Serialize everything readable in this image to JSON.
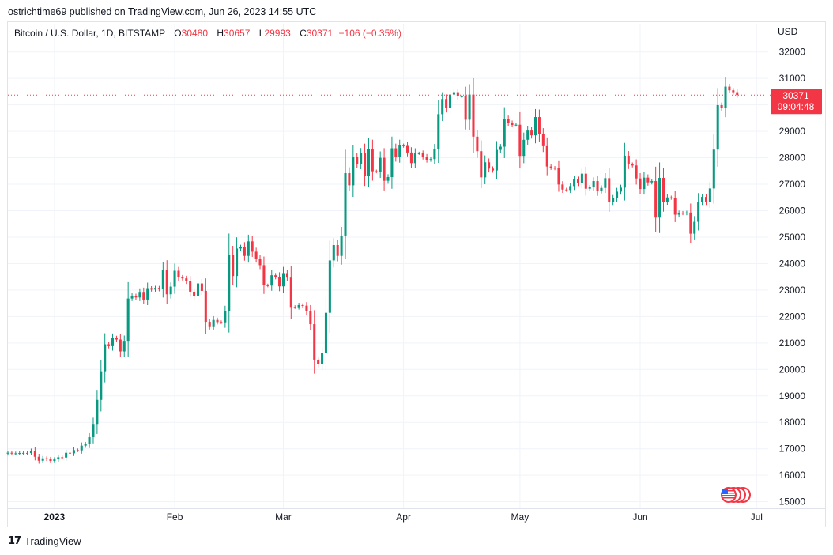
{
  "header": {
    "published": "ostrichtime69 published on TradingView.com, Jun 26, 2023 14:55 UTC"
  },
  "legend": {
    "symbol": "Bitcoin / U.S. Dollar, 1D, BITSTAMP",
    "o_label": "O",
    "o_value": "30480",
    "h_label": "H",
    "h_value": "30657",
    "l_label": "L",
    "l_value": "29993",
    "c_label": "C",
    "c_value": "30371",
    "change": "−106 (−0.35%)"
  },
  "price_axis": {
    "currency": "USD"
  },
  "last_price": {
    "price": "30371",
    "countdown": "09:04:48",
    "color": "#f23645"
  },
  "footer": {
    "brand": "TradingView",
    "brand_mark": "17"
  },
  "colors": {
    "up": "#089981",
    "down": "#f23645",
    "grid": "#f0f3fa"
  },
  "icons": {
    "events": "us-flag-events-icon"
  },
  "chart_data": {
    "type": "candlestick",
    "title": "Bitcoin / U.S. Dollar, 1D, BITSTAMP",
    "ylabel": "USD",
    "ylim": [
      14750,
      32350
    ],
    "y_ticks": [
      15000,
      16000,
      17000,
      18000,
      19000,
      20000,
      21000,
      22000,
      23000,
      24000,
      25000,
      26000,
      27000,
      28000,
      29000,
      30000,
      31000,
      32000
    ],
    "x_ticks": [
      {
        "label": "2023",
        "date": "2023-01-01",
        "bold": true
      },
      {
        "label": "Feb",
        "date": "2023-02-01",
        "bold": false
      },
      {
        "label": "Mar",
        "date": "2023-03-01",
        "bold": false
      },
      {
        "label": "Apr",
        "date": "2023-04-01",
        "bold": false
      },
      {
        "label": "May",
        "date": "2023-05-01",
        "bold": false
      },
      {
        "label": "Jun",
        "date": "2023-06-01",
        "bold": false
      },
      {
        "label": "Jul",
        "date": "2023-07-01",
        "bold": false
      }
    ],
    "xlim": [
      "2022-12-20",
      "2023-07-04"
    ],
    "grid": true,
    "last_close": 30371,
    "closes": [
      [
        "2022-12-20",
        16850
      ],
      [
        "2022-12-21",
        16820
      ],
      [
        "2022-12-22",
        16830
      ],
      [
        "2022-12-23",
        16840
      ],
      [
        "2022-12-24",
        16845
      ],
      [
        "2022-12-25",
        16840
      ],
      [
        "2022-12-26",
        16920
      ],
      [
        "2022-12-27",
        16700
      ],
      [
        "2022-12-28",
        16550
      ],
      [
        "2022-12-29",
        16640
      ],
      [
        "2022-12-30",
        16610
      ],
      [
        "2022-12-31",
        16540
      ],
      [
        "2023-01-01",
        16600
      ],
      [
        "2023-01-02",
        16680
      ],
      [
        "2023-01-03",
        16670
      ],
      [
        "2023-01-04",
        16850
      ],
      [
        "2023-01-05",
        16830
      ],
      [
        "2023-01-06",
        16950
      ],
      [
        "2023-01-07",
        16940
      ],
      [
        "2023-01-08",
        17120
      ],
      [
        "2023-01-09",
        17180
      ],
      [
        "2023-01-10",
        17440
      ],
      [
        "2023-01-11",
        17940
      ],
      [
        "2023-01-12",
        18850
      ],
      [
        "2023-01-13",
        19930
      ],
      [
        "2023-01-14",
        20950
      ],
      [
        "2023-01-15",
        20880
      ],
      [
        "2023-01-16",
        21190
      ],
      [
        "2023-01-17",
        21130
      ],
      [
        "2023-01-18",
        20680
      ],
      [
        "2023-01-19",
        21080
      ],
      [
        "2023-01-20",
        22680
      ],
      [
        "2023-01-21",
        22780
      ],
      [
        "2023-01-22",
        22720
      ],
      [
        "2023-01-23",
        22930
      ],
      [
        "2023-01-24",
        22640
      ],
      [
        "2023-01-25",
        23070
      ],
      [
        "2023-01-26",
        23020
      ],
      [
        "2023-01-27",
        23080
      ],
      [
        "2023-01-28",
        23030
      ],
      [
        "2023-01-29",
        23750
      ],
      [
        "2023-01-30",
        22840
      ],
      [
        "2023-01-31",
        23130
      ],
      [
        "2023-02-01",
        23730
      ],
      [
        "2023-02-02",
        23490
      ],
      [
        "2023-02-03",
        23440
      ],
      [
        "2023-02-04",
        23330
      ],
      [
        "2023-02-05",
        22940
      ],
      [
        "2023-02-06",
        22760
      ],
      [
        "2023-02-07",
        23250
      ],
      [
        "2023-02-08",
        22970
      ],
      [
        "2023-02-09",
        21800
      ],
      [
        "2023-02-10",
        21630
      ],
      [
        "2023-02-11",
        21870
      ],
      [
        "2023-02-12",
        21790
      ],
      [
        "2023-02-13",
        21780
      ],
      [
        "2023-02-14",
        22200
      ],
      [
        "2023-02-15",
        24330
      ],
      [
        "2023-02-16",
        23530
      ],
      [
        "2023-02-17",
        24570
      ],
      [
        "2023-02-18",
        24630
      ],
      [
        "2023-02-19",
        24290
      ],
      [
        "2023-02-20",
        24840
      ],
      [
        "2023-02-21",
        24450
      ],
      [
        "2023-02-22",
        24190
      ],
      [
        "2023-02-23",
        23940
      ],
      [
        "2023-02-24",
        23180
      ],
      [
        "2023-02-25",
        23170
      ],
      [
        "2023-02-26",
        23560
      ],
      [
        "2023-02-27",
        23490
      ],
      [
        "2023-02-28",
        23140
      ],
      [
        "2023-03-01",
        23640
      ],
      [
        "2023-03-02",
        23470
      ],
      [
        "2023-03-03",
        22360
      ],
      [
        "2023-03-04",
        22350
      ],
      [
        "2023-03-05",
        22430
      ],
      [
        "2023-03-06",
        22410
      ],
      [
        "2023-03-07",
        22200
      ],
      [
        "2023-03-08",
        21710
      ],
      [
        "2023-03-09",
        20370
      ],
      [
        "2023-03-10",
        20200
      ],
      [
        "2023-03-11",
        20620
      ],
      [
        "2023-03-12",
        22140
      ],
      [
        "2023-03-13",
        24120
      ],
      [
        "2023-03-14",
        24700
      ],
      [
        "2023-03-15",
        24290
      ],
      [
        "2023-03-16",
        25060
      ],
      [
        "2023-03-17",
        27420
      ],
      [
        "2023-03-18",
        26960
      ],
      [
        "2023-03-19",
        28040
      ],
      [
        "2023-03-20",
        27770
      ],
      [
        "2023-03-21",
        28170
      ],
      [
        "2023-03-22",
        27300
      ],
      [
        "2023-03-23",
        28330
      ],
      [
        "2023-03-24",
        27490
      ],
      [
        "2023-03-25",
        27480
      ],
      [
        "2023-03-26",
        28000
      ],
      [
        "2023-03-27",
        27130
      ],
      [
        "2023-03-28",
        27270
      ],
      [
        "2023-03-29",
        28360
      ],
      [
        "2023-03-30",
        28030
      ],
      [
        "2023-03-31",
        28470
      ],
      [
        "2023-04-01",
        28450
      ],
      [
        "2023-04-02",
        28200
      ],
      [
        "2023-04-03",
        27800
      ],
      [
        "2023-04-04",
        28170
      ],
      [
        "2023-04-05",
        28170
      ],
      [
        "2023-04-06",
        28040
      ],
      [
        "2023-04-07",
        27920
      ],
      [
        "2023-04-08",
        27950
      ],
      [
        "2023-04-09",
        28330
      ],
      [
        "2023-04-10",
        29650
      ],
      [
        "2023-04-11",
        30220
      ],
      [
        "2023-04-12",
        29890
      ],
      [
        "2023-04-13",
        30390
      ],
      [
        "2023-04-14",
        30480
      ],
      [
        "2023-04-15",
        30320
      ],
      [
        "2023-04-16",
        30320
      ],
      [
        "2023-04-17",
        29440
      ],
      [
        "2023-04-18",
        30390
      ],
      [
        "2023-04-19",
        28800
      ],
      [
        "2023-04-20",
        28250
      ],
      [
        "2023-04-21",
        27260
      ],
      [
        "2023-04-22",
        27830
      ],
      [
        "2023-04-23",
        27590
      ],
      [
        "2023-04-24",
        27520
      ],
      [
        "2023-04-25",
        28300
      ],
      [
        "2023-04-26",
        28420
      ],
      [
        "2023-04-27",
        29480
      ],
      [
        "2023-04-28",
        29320
      ],
      [
        "2023-04-29",
        29240
      ],
      [
        "2023-04-30",
        29250
      ],
      [
        "2023-05-01",
        28070
      ],
      [
        "2023-05-02",
        28680
      ],
      [
        "2023-05-03",
        29030
      ],
      [
        "2023-05-04",
        28850
      ],
      [
        "2023-05-05",
        29540
      ],
      [
        "2023-05-06",
        28900
      ],
      [
        "2023-05-07",
        28440
      ],
      [
        "2023-05-08",
        27670
      ],
      [
        "2023-05-09",
        27620
      ],
      [
        "2023-05-10",
        27600
      ],
      [
        "2023-05-11",
        26990
      ],
      [
        "2023-05-12",
        26800
      ],
      [
        "2023-05-13",
        26780
      ],
      [
        "2023-05-14",
        26930
      ],
      [
        "2023-05-15",
        27180
      ],
      [
        "2023-05-16",
        27040
      ],
      [
        "2023-05-17",
        27400
      ],
      [
        "2023-05-18",
        26830
      ],
      [
        "2023-05-19",
        26890
      ],
      [
        "2023-05-20",
        27120
      ],
      [
        "2023-05-21",
        26750
      ],
      [
        "2023-05-22",
        26860
      ],
      [
        "2023-05-23",
        27230
      ],
      [
        "2023-05-24",
        26330
      ],
      [
        "2023-05-25",
        26480
      ],
      [
        "2023-05-26",
        26720
      ],
      [
        "2023-05-27",
        26870
      ],
      [
        "2023-05-28",
        28080
      ],
      [
        "2023-05-29",
        27750
      ],
      [
        "2023-05-30",
        27710
      ],
      [
        "2023-05-31",
        27220
      ],
      [
        "2023-06-01",
        26820
      ],
      [
        "2023-06-02",
        27250
      ],
      [
        "2023-06-03",
        27070
      ],
      [
        "2023-06-04",
        27120
      ],
      [
        "2023-06-05",
        25740
      ],
      [
        "2023-06-06",
        27240
      ],
      [
        "2023-06-07",
        26340
      ],
      [
        "2023-06-08",
        26500
      ],
      [
        "2023-06-09",
        26480
      ],
      [
        "2023-06-10",
        25850
      ],
      [
        "2023-06-11",
        25920
      ],
      [
        "2023-06-12",
        25900
      ],
      [
        "2023-06-13",
        25930
      ],
      [
        "2023-06-14",
        25130
      ],
      [
        "2023-06-15",
        25580
      ],
      [
        "2023-06-16",
        26340
      ],
      [
        "2023-06-17",
        26520
      ],
      [
        "2023-06-18",
        26340
      ],
      [
        "2023-06-19",
        26840
      ],
      [
        "2023-06-20",
        28310
      ],
      [
        "2023-06-21",
        29990
      ],
      [
        "2023-06-22",
        29880
      ],
      [
        "2023-06-23",
        30690
      ],
      [
        "2023-06-24",
        30550
      ],
      [
        "2023-06-25",
        30480
      ],
      [
        "2023-06-26",
        30371
      ]
    ]
  }
}
